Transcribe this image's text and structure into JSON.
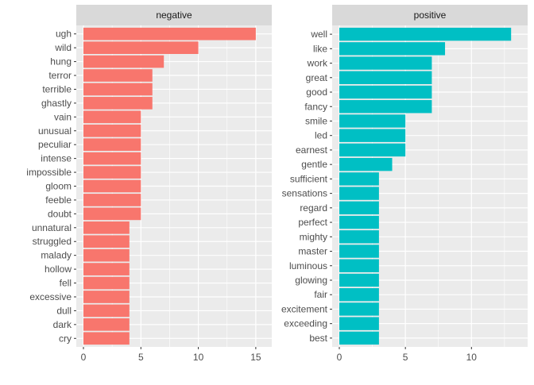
{
  "chart_data": [
    {
      "type": "bar",
      "orientation": "horizontal",
      "facet_label": "negative",
      "color": "#F8766D",
      "categories": [
        "ugh",
        "wild",
        "hung",
        "terror",
        "terrible",
        "ghastly",
        "vain",
        "unusual",
        "peculiar",
        "intense",
        "impossible",
        "gloom",
        "feeble",
        "doubt",
        "unnatural",
        "struggled",
        "malady",
        "hollow",
        "fell",
        "excessive",
        "dull",
        "dark",
        "cry"
      ],
      "values": [
        15,
        10,
        7,
        6,
        6,
        6,
        5,
        5,
        5,
        5,
        5,
        5,
        5,
        5,
        4,
        4,
        4,
        4,
        4,
        4,
        4,
        4,
        4
      ],
      "xlim": [
        0,
        15.7
      ],
      "xticks": [
        0,
        5,
        10,
        15
      ],
      "grid": true
    },
    {
      "type": "bar",
      "orientation": "horizontal",
      "facet_label": "positive",
      "color": "#00BFC4",
      "categories": [
        "well",
        "like",
        "work",
        "great",
        "good",
        "fancy",
        "smile",
        "led",
        "earnest",
        "gentle",
        "sufficient",
        "sensations",
        "regard",
        "perfect",
        "mighty",
        "master",
        "luminous",
        "glowing",
        "fair",
        "excitement",
        "exceeding",
        "best"
      ],
      "values": [
        13,
        8,
        7,
        7,
        7,
        7,
        5,
        5,
        5,
        4,
        3,
        3,
        3,
        3,
        3,
        3,
        3,
        3,
        3,
        3,
        3,
        3
      ],
      "xlim": [
        0,
        13.65
      ],
      "xticks": [
        0,
        5,
        10
      ],
      "grid": true
    }
  ]
}
